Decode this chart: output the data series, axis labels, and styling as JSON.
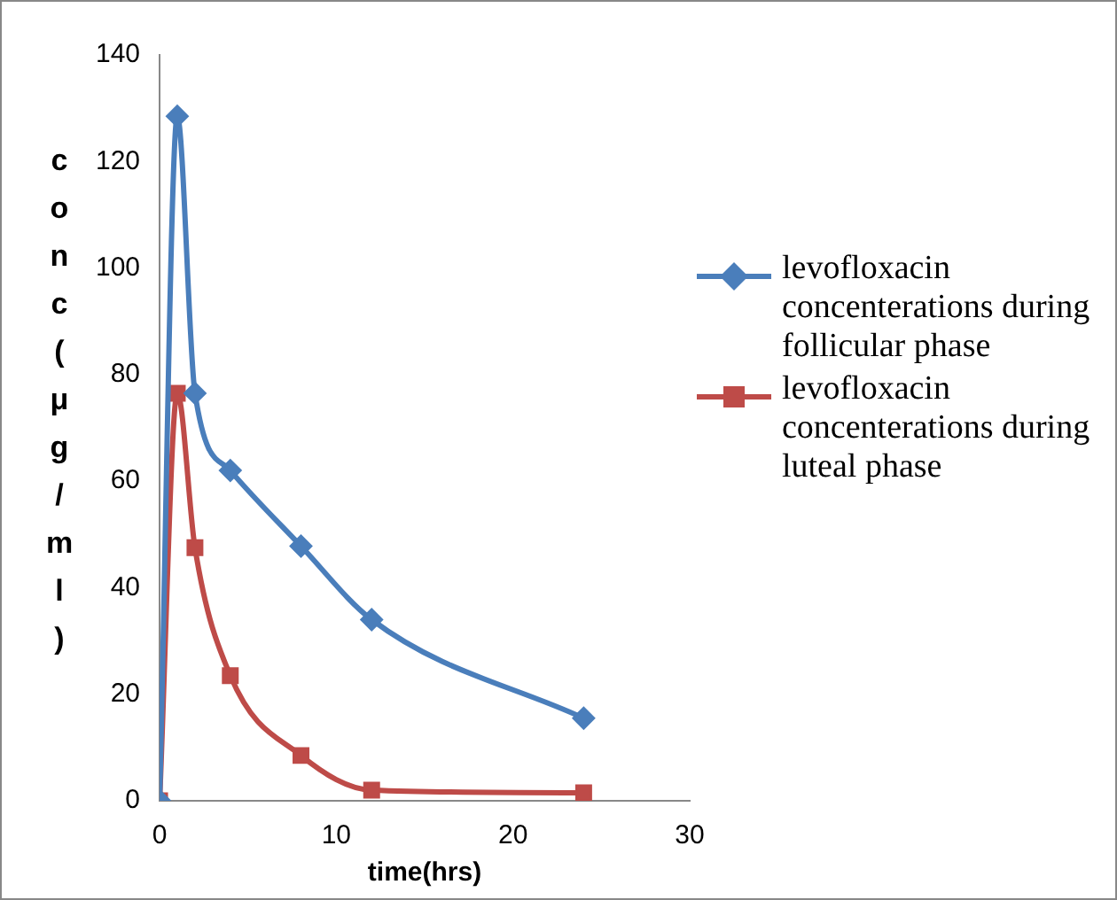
{
  "chart_data": {
    "type": "line",
    "xlabel": "time(hrs)",
    "ylabel": "conc(μg/ml)",
    "xlim": [
      0,
      30
    ],
    "xticks": [
      0,
      10,
      20,
      30
    ],
    "ylim": [
      0,
      140
    ],
    "yticks": [
      0,
      20,
      40,
      60,
      80,
      100,
      120,
      140
    ],
    "grid": false,
    "legend": "right",
    "series": [
      {
        "name": "levofloxacin concenterations during follicular phase",
        "color": "#4a7ebb",
        "marker": "diamond",
        "x": [
          0,
          1,
          2,
          4,
          8,
          12,
          24
        ],
        "values": [
          0,
          128.5,
          76.5,
          62,
          47.8,
          34,
          15.5
        ]
      },
      {
        "name": "levofloxacin concenterations during luteal phase",
        "color": "#be4b48",
        "marker": "square",
        "x": [
          0,
          1,
          2,
          4,
          8,
          12,
          24
        ],
        "values": [
          0,
          76.5,
          47.5,
          23.5,
          8.5,
          2,
          1.5
        ]
      }
    ]
  }
}
